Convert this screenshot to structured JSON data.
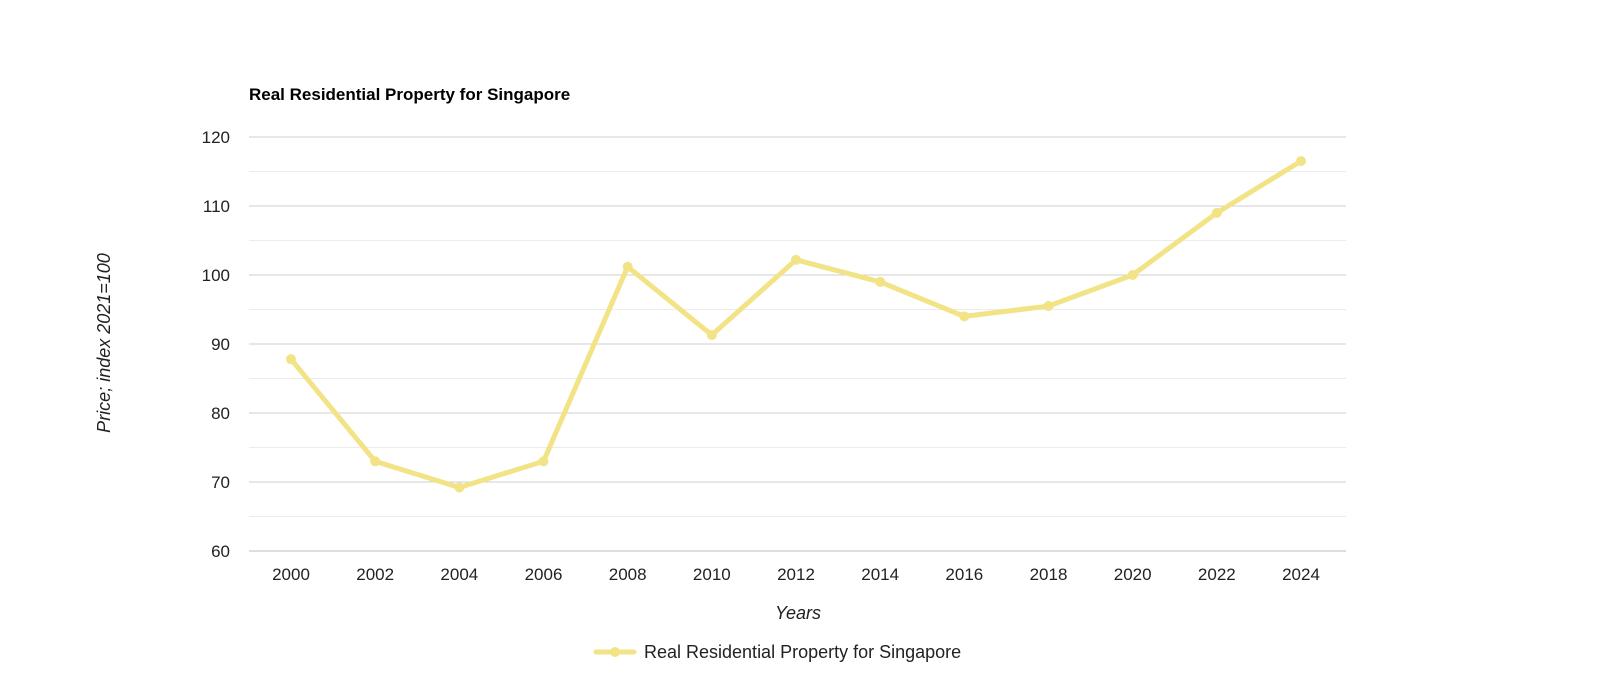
{
  "chart_data": {
    "type": "line",
    "title": "Real Residential Property for Singapore",
    "xlabel": "Years",
    "ylabel": "Price; index 2021=100",
    "x": [
      2000,
      2002,
      2004,
      2006,
      2008,
      2010,
      2012,
      2014,
      2016,
      2018,
      2020,
      2022,
      2024
    ],
    "x_tick_labels": [
      "2000",
      "2002",
      "2004",
      "2006",
      "2008",
      "2010",
      "2012",
      "2014",
      "2016",
      "2018",
      "2020",
      "2022",
      "2024"
    ],
    "series": [
      {
        "name": "Real Residential Property for Singapore",
        "color": "#f2e386",
        "values": [
          87.8,
          73,
          69.2,
          73,
          101.2,
          91.3,
          102.2,
          99,
          94,
          95.5,
          100,
          109,
          116.5
        ]
      }
    ],
    "ylim": [
      60,
      120
    ],
    "y_ticks": [
      60,
      70,
      80,
      90,
      100,
      110,
      120
    ],
    "y_tick_labels": [
      "60",
      "70",
      "80",
      "90",
      "100",
      "110",
      "120"
    ],
    "grid": true,
    "legend_position": "bottom"
  }
}
